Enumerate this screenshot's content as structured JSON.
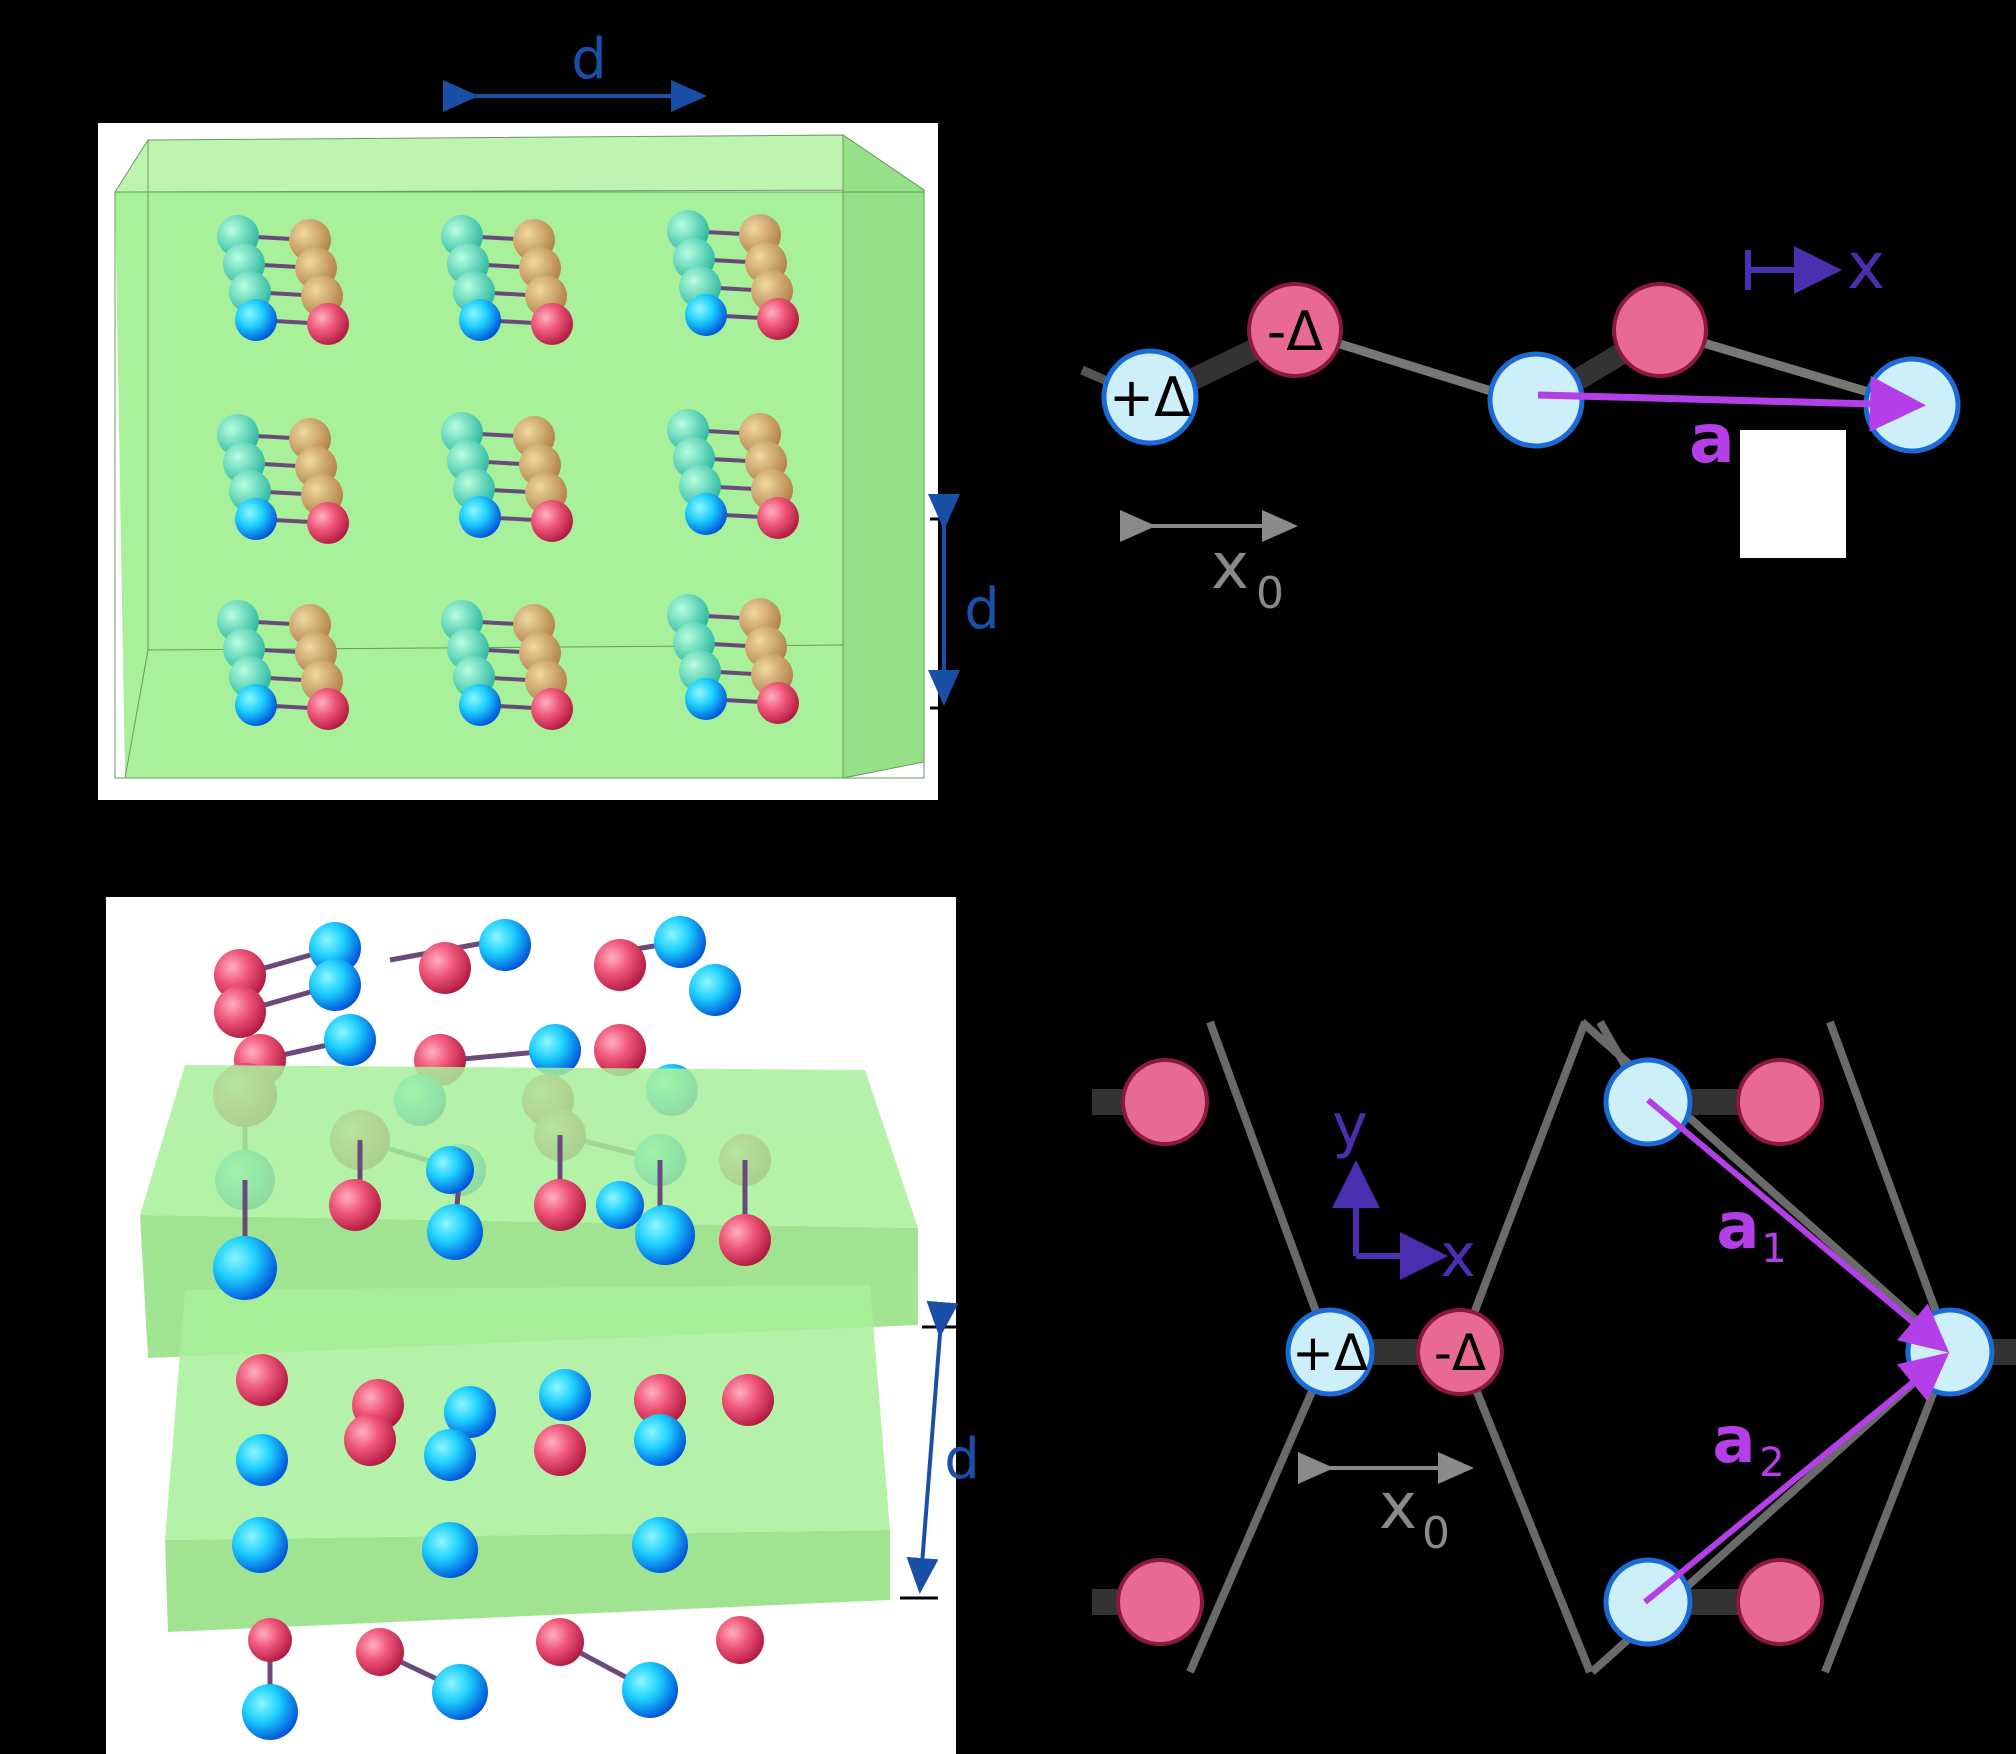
{
  "panel_tl": {
    "d_top": "d",
    "d_side": "d"
  },
  "panel_tr": {
    "plus_delta": "+Δ",
    "minus_delta": "-Δ",
    "axis_x": "x",
    "vector": "a",
    "spacing": "x",
    "spacing_sub": "0"
  },
  "panel_bl": {
    "d_side": "d"
  },
  "panel_br": {
    "plus_delta": "+Δ",
    "minus_delta": "-Δ",
    "axis_x": "x",
    "axis_y": "y",
    "vector1": "a",
    "vector1_sub": "1",
    "vector2": "a",
    "vector2_sub": "2",
    "spacing": "x",
    "spacing_sub": "0"
  },
  "colors": {
    "background": "#000000",
    "film": "#a8f09a",
    "blue_atom": "#1e90ff",
    "red_atom": "#e0405a",
    "site_light_blue": "#cdeffa",
    "site_pink": "#e86a94",
    "vector": "#b43ee8",
    "dimension": "#1a4fa8",
    "axis": "#4a2fb0",
    "bond": "#8a8a8a"
  }
}
